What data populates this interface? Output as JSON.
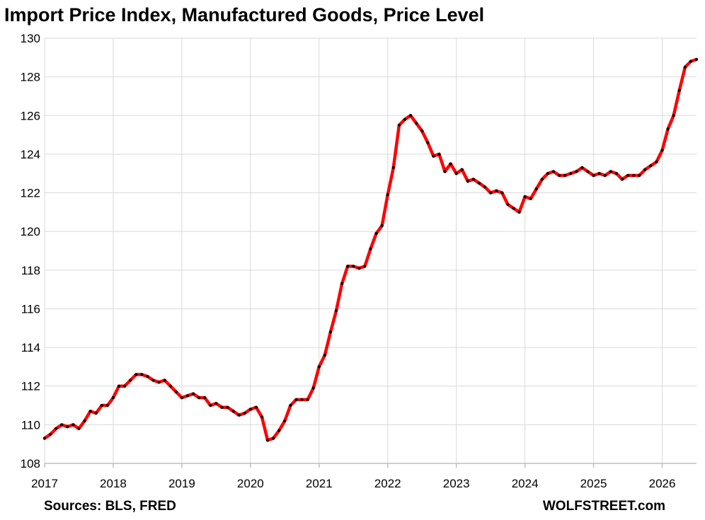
{
  "chart_data": {
    "type": "line",
    "title": "Import Price Index, Manufactured Goods, Price Level",
    "xlabel": "",
    "ylabel": "",
    "ylim": [
      108,
      130
    ],
    "yticks": [
      "108",
      "110",
      "112",
      "114",
      "116",
      "118",
      "120",
      "122",
      "124",
      "126",
      "128",
      "130"
    ],
    "xlim": [
      "2017-01",
      "2026-07"
    ],
    "xticks": [
      "2017",
      "2018",
      "2019",
      "2020",
      "2021",
      "2022",
      "2023",
      "2024",
      "2025",
      "2026"
    ],
    "grid": true,
    "legend": "none",
    "line_color": "#ff0000",
    "marker_color": "#000000",
    "series": [
      {
        "x": [
          "2017-01",
          "2017-02",
          "2017-03",
          "2017-04",
          "2017-05",
          "2017-06",
          "2017-07",
          "2017-08",
          "2017-09",
          "2017-10",
          "2017-11",
          "2017-12",
          "2018-01",
          "2018-02",
          "2018-03",
          "2018-04",
          "2018-05",
          "2018-06",
          "2018-07",
          "2018-08",
          "2018-09",
          "2018-10",
          "2018-11",
          "2018-12",
          "2019-01",
          "2019-02",
          "2019-03",
          "2019-04",
          "2019-05",
          "2019-06",
          "2019-07",
          "2019-08",
          "2019-09",
          "2019-10",
          "2019-11",
          "2019-12",
          "2020-01",
          "2020-02",
          "2020-03",
          "2020-04",
          "2020-05",
          "2020-06",
          "2020-07",
          "2020-08",
          "2020-09",
          "2020-10",
          "2020-11",
          "2020-12",
          "2021-01",
          "2021-02",
          "2021-03",
          "2021-04",
          "2021-05",
          "2021-06",
          "2021-07",
          "2021-08",
          "2021-09",
          "2021-10",
          "2021-11",
          "2021-12",
          "2022-01",
          "2022-02",
          "2022-03",
          "2022-04",
          "2022-05",
          "2022-06",
          "2022-07",
          "2022-08",
          "2022-09",
          "2022-10",
          "2022-11",
          "2022-12",
          "2023-01",
          "2023-02",
          "2023-03",
          "2023-04",
          "2023-05",
          "2023-06",
          "2023-07",
          "2023-08",
          "2023-09",
          "2023-10",
          "2023-11",
          "2023-12",
          "2024-01",
          "2024-02",
          "2024-03",
          "2024-04",
          "2024-05",
          "2024-06",
          "2024-07",
          "2024-08",
          "2024-09",
          "2024-10",
          "2024-11",
          "2024-12",
          "2025-01",
          "2025-02",
          "2025-03",
          "2025-04",
          "2025-05",
          "2025-06",
          "2025-07",
          "2025-08",
          "2025-09",
          "2025-10",
          "2025-11",
          "2025-12",
          "2026-01",
          "2026-02",
          "2026-03",
          "2026-04",
          "2026-05",
          "2026-06",
          "2026-07"
        ],
        "values": [
          109.3,
          109.5,
          109.8,
          110.0,
          109.9,
          110.0,
          109.8,
          110.2,
          110.7,
          110.6,
          111.0,
          111.0,
          111.4,
          112.0,
          112.0,
          112.3,
          112.6,
          112.6,
          112.5,
          112.3,
          112.2,
          112.3,
          112.0,
          111.7,
          111.4,
          111.5,
          111.6,
          111.4,
          111.4,
          111.0,
          111.1,
          110.9,
          110.9,
          110.7,
          110.5,
          110.6,
          110.8,
          110.9,
          110.4,
          109.2,
          109.3,
          109.7,
          110.2,
          111.0,
          111.3,
          111.3,
          111.3,
          111.9,
          113.0,
          113.6,
          114.8,
          115.9,
          117.3,
          118.2,
          118.2,
          118.1,
          118.2,
          119.1,
          119.9,
          120.3,
          121.9,
          123.3,
          125.5,
          125.8,
          126.0,
          125.6,
          125.2,
          124.6,
          123.9,
          124.0,
          123.1,
          123.5,
          123.0,
          123.2,
          122.6,
          122.7,
          122.5,
          122.3,
          122.0,
          122.1,
          122.0,
          121.4,
          121.2,
          121.0,
          121.8,
          121.7,
          122.2,
          122.7,
          123.0,
          123.1,
          122.9,
          122.9,
          123.0,
          123.1,
          123.3,
          123.1,
          122.9,
          123.0,
          122.9,
          123.1,
          123.0,
          122.7,
          122.9,
          122.9,
          122.9,
          123.2,
          123.4,
          123.6,
          124.2,
          125.3,
          126.0,
          127.3,
          128.5,
          128.8,
          128.9
        ]
      }
    ]
  },
  "footer": {
    "sources": "Sources: BLS, FRED",
    "brand": "WOLFSTREET.com"
  }
}
